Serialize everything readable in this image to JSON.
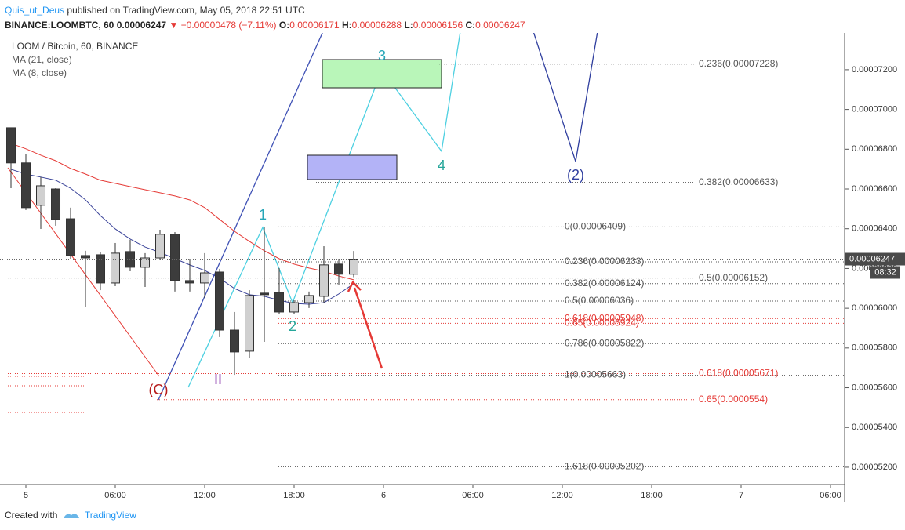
{
  "header": {
    "author": "Quis_ut_Deus",
    "published": "published on TradingView.com, May 05, 2018 22:51 UTC",
    "symbol": "BINANCE:LOOMBTC, 60",
    "last": "0.00006247",
    "change": "▼ −0.00000478 (−7.11%)",
    "ohlc": [
      {
        "key": "O:",
        "value": "0.00006171"
      },
      {
        "key": "H:",
        "value": "0.00006288"
      },
      {
        "key": "L:",
        "value": "0.00006156"
      },
      {
        "key": "C:",
        "value": "0.00006247"
      }
    ]
  },
  "footer": {
    "created": "Created with",
    "brand": "TradingView"
  },
  "chart_data": {
    "type": "candlestick",
    "title": "LOOM / Bitcoin, 60, BINANCE",
    "x": [
      -1,
      0,
      1,
      2,
      3,
      4,
      5,
      6,
      7,
      8,
      9,
      10,
      11,
      12,
      13,
      14,
      15,
      16,
      17,
      18,
      19,
      20,
      21,
      22
    ],
    "xlim": [
      -1.737,
      54.947
    ],
    "xticks": [
      {
        "value": 0,
        "label": "5"
      },
      {
        "value": 6,
        "label": "06:00"
      },
      {
        "value": 12,
        "label": "12:00"
      },
      {
        "value": 18,
        "label": "18:00"
      },
      {
        "value": 24,
        "label": "6"
      },
      {
        "value": 30,
        "label": "06:00"
      },
      {
        "value": 36,
        "label": "12:00"
      },
      {
        "value": 42,
        "label": "18:00"
      },
      {
        "value": 48,
        "label": "7"
      },
      {
        "value": 54,
        "label": "06:00"
      }
    ],
    "open": [
      6.908e-05,
      6.731e-05,
      6.518e-05,
      6.6e-05,
      6.45e-05,
      6.265e-05,
      6.269e-05,
      6.127e-05,
      6.285e-05,
      6.206e-05,
      6.253e-05,
      6.372e-05,
      6.139e-05,
      6.127e-05,
      6.182e-05,
      5.89e-05,
      5.784e-05,
      6.076e-05,
      6.08e-05,
      5.981e-05,
      6.028e-05,
      6.06e-05,
      6.222e-05,
      6.171e-05
    ],
    "high": [
      6.908e-05,
      6.774e-05,
      6.66e-05,
      6.604e-05,
      6.506e-05,
      6.289e-05,
      6.281e-05,
      6.328e-05,
      6.344e-05,
      6.277e-05,
      6.395e-05,
      6.383e-05,
      6.249e-05,
      6.277e-05,
      6.198e-05,
      5.981e-05,
      6.091e-05,
      6.407e-05,
      6.202e-05,
      6.04e-05,
      6.084e-05,
      6.312e-05,
      6.249e-05,
      6.288e-05
    ],
    "low": [
      6.604e-05,
      6.494e-05,
      6.399e-05,
      6.415e-05,
      6.249e-05,
      6.005e-05,
      6.091e-05,
      6.111e-05,
      6.186e-05,
      6.107e-05,
      6.245e-05,
      6.084e-05,
      6.084e-05,
      6.052e-05,
      5.855e-05,
      5.665e-05,
      5.752e-05,
      5.831e-05,
      5.973e-05,
      5.969e-05,
      6.001e-05,
      6.028e-05,
      6.119e-05,
      6.156e-05
    ],
    "close": [
      6.731e-05,
      6.506e-05,
      6.616e-05,
      6.447e-05,
      6.265e-05,
      6.253e-05,
      6.127e-05,
      6.277e-05,
      6.206e-05,
      6.253e-05,
      6.372e-05,
      6.139e-05,
      6.127e-05,
      6.178e-05,
      5.89e-05,
      5.78e-05,
      6.064e-05,
      6.068e-05,
      5.981e-05,
      6.028e-05,
      6.064e-05,
      6.218e-05,
      6.171e-05,
      6.247e-05
    ],
    "up_color": "#d0d0d0",
    "down_color": "#3c3c3c",
    "series": [
      {
        "name": "MA (21, close)",
        "color": "#e53935",
        "values": [
          6.829e-05,
          6.802e-05,
          6.77e-05,
          6.742e-05,
          6.703e-05,
          6.675e-05,
          6.644e-05,
          6.628e-05,
          6.612e-05,
          6.596e-05,
          6.581e-05,
          6.565e-05,
          6.545e-05,
          6.506e-05,
          6.447e-05,
          6.387e-05,
          6.336e-05,
          6.289e-05,
          6.249e-05,
          6.222e-05,
          6.202e-05,
          6.186e-05,
          6.162e-05,
          6.143e-05
        ]
      },
      {
        "name": "MA (8, close)",
        "color": "#3a4399",
        "values": [
          6.699e-05,
          6.675e-05,
          6.66e-05,
          6.644e-05,
          6.604e-05,
          6.545e-05,
          6.466e-05,
          6.399e-05,
          6.348e-05,
          6.308e-05,
          6.281e-05,
          6.249e-05,
          6.218e-05,
          6.19e-05,
          6.151e-05,
          6.099e-05,
          6.068e-05,
          6.06e-05,
          6.04e-05,
          6.024e-05,
          6.02e-05,
          6.028e-05,
          6.072e-05,
          6.123e-05
        ]
      }
    ],
    "ylim": [
      5.113e-05,
      7.385e-05
    ],
    "yticks": [
      {
        "value": 7.2e-05,
        "label": "0.00007200"
      },
      {
        "value": 7e-05,
        "label": "0.00007000"
      },
      {
        "value": 6.8e-05,
        "label": "0.00006800"
      },
      {
        "value": 6.6e-05,
        "label": "0.00006600"
      },
      {
        "value": 6.4e-05,
        "label": "0.00006400"
      },
      {
        "value": 6.2e-05,
        "label": "0.00006200"
      },
      {
        "value": 6e-05,
        "label": "0.00006000"
      },
      {
        "value": 5.8e-05,
        "label": "0.00005800"
      },
      {
        "value": 5.6e-05,
        "label": "0.00005600"
      },
      {
        "value": 5.4e-05,
        "label": "0.00005400"
      },
      {
        "value": 5.2e-05,
        "label": "0.00005200"
      }
    ],
    "last_price_label": "0.00006247",
    "countdown": "08:32",
    "fib_levels": [
      {
        "label": "0(0.00006409)",
        "value": 6.409e-05,
        "color": "#555555"
      },
      {
        "label": "0.236(0.00006233)",
        "value": 6.233e-05,
        "color": "#555555"
      },
      {
        "label": "0.382(0.00006124)",
        "value": 6.124e-05,
        "color": "#555555"
      },
      {
        "label": "0.5(0.00006036)",
        "value": 6.036e-05,
        "color": "#555555"
      },
      {
        "label": "0.618(0.00005948)",
        "value": 5.948e-05,
        "color": "#e53935"
      },
      {
        "label": "0.65(0.00005924)",
        "value": 5.924e-05,
        "color": "#e53935"
      },
      {
        "label": "0.786(0.00005822)",
        "value": 5.822e-05,
        "color": "#555555"
      },
      {
        "label": "1(0.00005663)",
        "value": 5.663e-05,
        "color": "#555555"
      },
      {
        "label": "1.618(0.00005202)",
        "value": 5.202e-05,
        "color": "#555555"
      },
      {
        "label": "0.236(0.00007228)",
        "value": 7.228e-05,
        "color": "#555555"
      },
      {
        "label": "0.382(0.00006633)",
        "value": 6.633e-05,
        "color": "#555555"
      },
      {
        "label": "0.5(0.00006152)",
        "value": 6.152e-05,
        "color": "#555555"
      },
      {
        "label": "0.618(0.00005671)",
        "value": 5.671e-05,
        "color": "#e53935"
      },
      {
        "label": "0.65(0.0000554)",
        "value": 5.54e-05,
        "color": "#e53935"
      }
    ],
    "annotations": [
      {
        "text": "1",
        "color": "#26a6b8"
      },
      {
        "text": "2",
        "color": "#26a69a"
      },
      {
        "text": "3",
        "color": "#26a6b8"
      },
      {
        "text": "4",
        "color": "#26a69a"
      },
      {
        "text": "(2)",
        "color": "#303f9f"
      },
      {
        "text": "(C)",
        "color": "#b71c1c"
      },
      {
        "text": "II",
        "color": "#7b1fa2"
      }
    ]
  }
}
